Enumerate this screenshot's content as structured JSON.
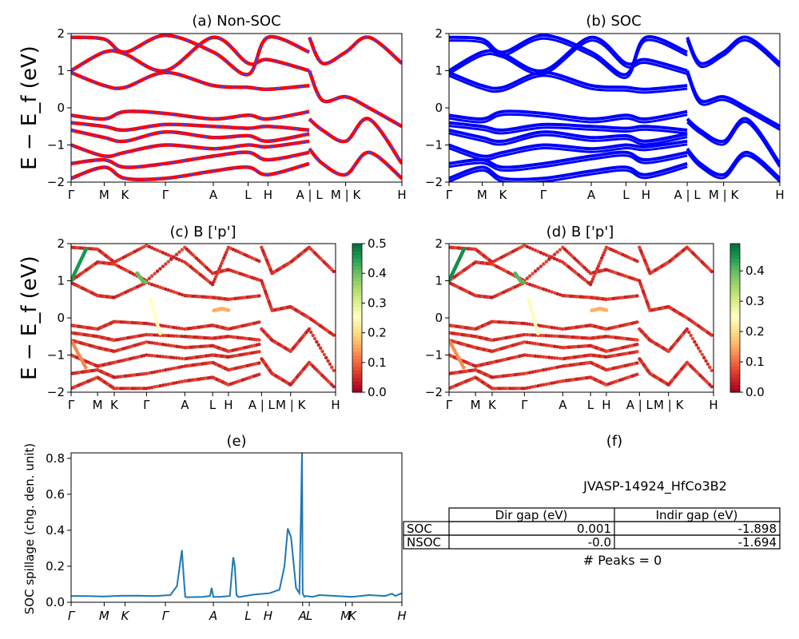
{
  "figure_title": "JVASP-14924_HfCo3B2",
  "bands_ylabel": "E − E_f (eV)",
  "kpath_labels": [
    "Γ",
    "M",
    "K",
    "Γ",
    "A",
    "L",
    "H",
    "A | L",
    "M | K",
    "H"
  ],
  "kpath_positions": [
    0.0,
    0.1,
    0.163,
    0.285,
    0.43,
    0.535,
    0.595,
    0.72,
    0.83,
    1.0
  ],
  "colors": {
    "nonsoc_line": "#ff0000",
    "nonsoc_dash": "#3344ff",
    "soc_line": "#0000ff",
    "spillage_line": "#1f77b4"
  },
  "chart_data": [
    {
      "id": "a",
      "type": "line",
      "title": "(a) Non-SOC",
      "ylabel": "E − E_f (eV)",
      "ylim": [
        -2,
        2
      ],
      "yticks": [
        "−2",
        "−1",
        "0",
        "1",
        "2"
      ],
      "xticks": [
        "Γ",
        "M",
        "K",
        "Γ",
        "A",
        "L",
        "H",
        "A | L",
        "M | K",
        "H"
      ],
      "series": [
        {
          "x": [
            0,
            0.1,
            0.163,
            0.285,
            0.43,
            0.535,
            0.595,
            0.72
          ],
          "y": [
            1.9,
            1.85,
            1.5,
            1.95,
            1.5,
            0.9,
            1.9,
            1.5
          ]
        },
        {
          "x": [
            0,
            0.1,
            0.163,
            0.285,
            0.43,
            0.535,
            0.595,
            0.72
          ],
          "y": [
            1.0,
            1.5,
            1.45,
            1.0,
            1.9,
            1.2,
            1.3,
            1.0
          ]
        },
        {
          "x": [
            0,
            0.1,
            0.163,
            0.285,
            0.43,
            0.535,
            0.595,
            0.72
          ],
          "y": [
            0.95,
            0.6,
            0.55,
            0.95,
            0.6,
            0.55,
            0.5,
            0.6
          ]
        },
        {
          "x": [
            0,
            0.1,
            0.163,
            0.285,
            0.43,
            0.535,
            0.595,
            0.72
          ],
          "y": [
            -0.2,
            -0.3,
            -0.1,
            -0.15,
            -0.3,
            -0.2,
            -0.3,
            -0.1
          ]
        },
        {
          "x": [
            0,
            0.1,
            0.163,
            0.285,
            0.43,
            0.535,
            0.595,
            0.72
          ],
          "y": [
            -0.4,
            -0.5,
            -0.6,
            -0.45,
            -0.5,
            -0.55,
            -0.5,
            -0.6
          ]
        },
        {
          "x": [
            0,
            0.1,
            0.163,
            0.285,
            0.43,
            0.535,
            0.595,
            0.72
          ],
          "y": [
            -0.6,
            -0.8,
            -0.9,
            -0.65,
            -0.8,
            -0.75,
            -0.9,
            -0.7
          ]
        },
        {
          "x": [
            0,
            0.1,
            0.163,
            0.285,
            0.43,
            0.535,
            0.595,
            0.72
          ],
          "y": [
            -1.0,
            -1.3,
            -1.2,
            -1.0,
            -1.1,
            -1.0,
            -1.05,
            -0.9
          ]
        },
        {
          "x": [
            0,
            0.1,
            0.163,
            0.285,
            0.43,
            0.535,
            0.595,
            0.72
          ],
          "y": [
            -1.5,
            -1.4,
            -1.6,
            -1.5,
            -1.3,
            -1.2,
            -1.4,
            -1.2
          ]
        },
        {
          "x": [
            0,
            0.1,
            0.163,
            0.285,
            0.43,
            0.535,
            0.595,
            0.72
          ],
          "y": [
            -1.9,
            -1.6,
            -1.9,
            -1.9,
            -1.7,
            -1.6,
            -1.8,
            -1.5
          ]
        },
        {
          "x": [
            0.72,
            0.76,
            0.83,
            0.9,
            1.0
          ],
          "y": [
            1.9,
            1.2,
            1.5,
            1.9,
            1.2
          ]
        },
        {
          "x": [
            0.72,
            0.76,
            0.83,
            0.9,
            1.0
          ],
          "y": [
            1.0,
            0.2,
            0.3,
            0.0,
            -0.5
          ]
        },
        {
          "x": [
            0.72,
            0.76,
            0.83,
            0.9,
            1.0
          ],
          "y": [
            -0.3,
            -0.6,
            -0.9,
            -0.3,
            -1.5
          ]
        },
        {
          "x": [
            0.72,
            0.76,
            0.83,
            0.9,
            1.0
          ],
          "y": [
            -1.1,
            -1.5,
            -1.8,
            -1.2,
            -1.9
          ]
        }
      ]
    },
    {
      "id": "b",
      "type": "line",
      "title": "(b) SOC",
      "ylim": [
        -2,
        2
      ],
      "yticks": [
        "−2",
        "−1",
        "0",
        "1",
        "2"
      ],
      "xticks": [
        "Γ",
        "M",
        "K",
        "Γ",
        "A",
        "L",
        "H",
        "A | L",
        "M | K",
        "H"
      ],
      "series": [
        {
          "x": [
            0,
            0.1,
            0.163,
            0.285,
            0.43,
            0.535,
            0.595,
            0.72
          ],
          "y": [
            1.9,
            1.85,
            1.5,
            1.95,
            1.5,
            0.9,
            1.9,
            1.5
          ]
        },
        {
          "x": [
            0,
            0.1,
            0.163,
            0.285,
            0.43,
            0.535,
            0.595,
            0.72
          ],
          "y": [
            1.0,
            1.5,
            1.45,
            1.0,
            1.9,
            1.2,
            1.3,
            1.0
          ]
        },
        {
          "x": [
            0,
            0.1,
            0.163,
            0.285,
            0.43,
            0.535,
            0.595,
            0.72
          ],
          "y": [
            0.95,
            0.6,
            0.55,
            0.95,
            0.6,
            0.55,
            0.5,
            0.6
          ]
        },
        {
          "x": [
            0,
            0.1,
            0.163,
            0.285,
            0.43,
            0.535,
            0.595,
            0.72
          ],
          "y": [
            -0.2,
            -0.3,
            -0.1,
            -0.15,
            -0.3,
            -0.2,
            -0.3,
            -0.1
          ]
        },
        {
          "x": [
            0,
            0.1,
            0.163,
            0.285,
            0.43,
            0.535,
            0.595,
            0.72
          ],
          "y": [
            -0.4,
            -0.5,
            -0.6,
            -0.45,
            -0.5,
            -0.55,
            -0.5,
            -0.6
          ]
        },
        {
          "x": [
            0,
            0.1,
            0.163,
            0.285,
            0.43,
            0.535,
            0.595,
            0.72
          ],
          "y": [
            -0.6,
            -0.8,
            -0.9,
            -0.65,
            -0.8,
            -0.75,
            -0.9,
            -0.7
          ]
        },
        {
          "x": [
            0,
            0.1,
            0.163,
            0.285,
            0.43,
            0.535,
            0.595,
            0.72
          ],
          "y": [
            -1.0,
            -1.3,
            -1.2,
            -1.0,
            -1.1,
            -1.0,
            -1.05,
            -0.9
          ]
        },
        {
          "x": [
            0,
            0.1,
            0.163,
            0.285,
            0.43,
            0.535,
            0.595,
            0.72
          ],
          "y": [
            -1.5,
            -1.4,
            -1.6,
            -1.5,
            -1.3,
            -1.2,
            -1.4,
            -1.2
          ]
        },
        {
          "x": [
            0,
            0.1,
            0.163,
            0.285,
            0.43,
            0.535,
            0.595,
            0.72
          ],
          "y": [
            -1.9,
            -1.6,
            -1.9,
            -1.9,
            -1.7,
            -1.6,
            -1.8,
            -1.5
          ]
        },
        {
          "x": [
            0.72,
            0.76,
            0.83,
            0.9,
            1.0
          ],
          "y": [
            1.9,
            1.2,
            1.5,
            1.9,
            1.2
          ]
        },
        {
          "x": [
            0.72,
            0.76,
            0.83,
            0.9,
            1.0
          ],
          "y": [
            1.0,
            0.2,
            0.3,
            0.0,
            -0.5
          ]
        },
        {
          "x": [
            0.72,
            0.76,
            0.83,
            0.9,
            1.0
          ],
          "y": [
            -0.3,
            -0.6,
            -0.9,
            -0.3,
            -1.5
          ]
        },
        {
          "x": [
            0.72,
            0.76,
            0.83,
            0.9,
            1.0
          ],
          "y": [
            -1.1,
            -1.5,
            -1.8,
            -1.2,
            -1.9
          ]
        }
      ]
    },
    {
      "id": "c",
      "type": "scatter",
      "title": "(c)  B ['p']",
      "ylabel": "E − E_f (eV)",
      "ylim": [
        -2,
        2
      ],
      "yticks": [
        "−2",
        "−1",
        "0",
        "1",
        "2"
      ],
      "xticks": [
        "Γ",
        "M",
        "K",
        "Γ",
        "A",
        "L",
        "H",
        "A | L",
        "M | K",
        "H"
      ],
      "colorbar": {
        "ticks": [
          "0.0",
          "0.1",
          "0.2",
          "0.3",
          "0.4",
          "0.5"
        ],
        "max": 0.5
      },
      "highlight": [
        {
          "x": [
            0,
            0.02,
            0.04,
            0.06
          ],
          "y": [
            1.0,
            1.3,
            1.6,
            1.9
          ],
          "c": 0.45
        },
        {
          "x": [
            0.25,
            0.27,
            0.285
          ],
          "y": [
            1.2,
            1.0,
            0.95
          ],
          "c": 0.4
        },
        {
          "x": [
            0.3,
            0.32,
            0.34
          ],
          "y": [
            0.5,
            0.0,
            -0.5
          ],
          "c": 0.25
        },
        {
          "x": [
            0.54,
            0.57,
            0.6
          ],
          "y": [
            0.2,
            0.25,
            0.2
          ],
          "c": 0.15
        },
        {
          "x": [
            0,
            0.03,
            0.06
          ],
          "y": [
            -0.6,
            -1.0,
            -1.4
          ],
          "c": 0.12
        }
      ]
    },
    {
      "id": "d",
      "type": "scatter",
      "title": "(d) B ['p']",
      "ylim": [
        -2,
        2
      ],
      "yticks": [
        "−2",
        "−1",
        "0",
        "1",
        "2"
      ],
      "xticks": [
        "Γ",
        "M",
        "K",
        "Γ",
        "A",
        "L",
        "H",
        "A | L",
        "M | K",
        "H"
      ],
      "colorbar": {
        "ticks": [
          "0.0",
          "0.1",
          "0.2",
          "0.3",
          "0.4"
        ],
        "max": 0.49
      },
      "highlight": [
        {
          "x": [
            0,
            0.02,
            0.04,
            0.06
          ],
          "y": [
            1.0,
            1.3,
            1.6,
            1.9
          ],
          "c": 0.45
        },
        {
          "x": [
            0.25,
            0.27,
            0.285
          ],
          "y": [
            1.2,
            1.0,
            0.95
          ],
          "c": 0.4
        },
        {
          "x": [
            0.3,
            0.32,
            0.34
          ],
          "y": [
            0.5,
            0.0,
            -0.5
          ],
          "c": 0.25
        },
        {
          "x": [
            0.54,
            0.57,
            0.6
          ],
          "y": [
            0.2,
            0.25,
            0.2
          ],
          "c": 0.15
        },
        {
          "x": [
            0,
            0.03,
            0.06
          ],
          "y": [
            -0.6,
            -1.0,
            -1.4
          ],
          "c": 0.12
        }
      ]
    },
    {
      "id": "e",
      "type": "line",
      "title": "(e)",
      "ylabel": "SOC spillage (chg. den. unit)",
      "ylim": [
        0,
        0.83
      ],
      "yticks": [
        "0.0",
        "0.2",
        "0.4",
        "0.6",
        "0.8"
      ],
      "xticks": [
        "Γ",
        "M",
        "K",
        "Γ",
        "A",
        "L",
        "H",
        "A",
        "L",
        "M",
        "K",
        "H"
      ],
      "xtick_positions": [
        0.0,
        0.1,
        0.163,
        0.285,
        0.43,
        0.535,
        0.595,
        0.7,
        0.72,
        0.83,
        0.85,
        1.0
      ],
      "series": [
        {
          "name": "",
          "x": [
            0.0,
            0.05,
            0.1,
            0.15,
            0.2,
            0.25,
            0.3,
            0.32,
            0.335,
            0.34,
            0.345,
            0.35,
            0.4,
            0.42,
            0.425,
            0.43,
            0.45,
            0.48,
            0.49,
            0.495,
            0.5,
            0.505,
            0.51,
            0.55,
            0.6,
            0.63,
            0.645,
            0.655,
            0.665,
            0.68,
            0.69,
            0.695,
            0.698,
            0.7,
            0.705,
            0.71,
            0.73,
            0.75,
            0.8,
            0.85,
            0.9,
            0.95,
            0.97,
            0.98,
            1.0
          ],
          "y": [
            0.035,
            0.034,
            0.032,
            0.036,
            0.037,
            0.034,
            0.04,
            0.09,
            0.29,
            0.15,
            0.03,
            0.028,
            0.03,
            0.035,
            0.08,
            0.03,
            0.03,
            0.035,
            0.25,
            0.2,
            0.04,
            0.03,
            0.03,
            0.042,
            0.05,
            0.07,
            0.2,
            0.41,
            0.36,
            0.08,
            0.05,
            0.5,
            0.83,
            0.05,
            0.03,
            0.035,
            0.03,
            0.04,
            0.035,
            0.03,
            0.04,
            0.035,
            0.048,
            0.035,
            0.05
          ]
        }
      ]
    },
    {
      "id": "f",
      "type": "table",
      "title": "(f)",
      "header": [
        "Dir gap (eV)",
        "Indir gap (eV)"
      ],
      "rows": [
        {
          "label": "SOC",
          "dir": "0.001",
          "indir": "-1.898"
        },
        {
          "label": "NSOC",
          "dir": "-0.0",
          "indir": "-1.694"
        }
      ],
      "peaks": "# Peaks = 0"
    }
  ]
}
